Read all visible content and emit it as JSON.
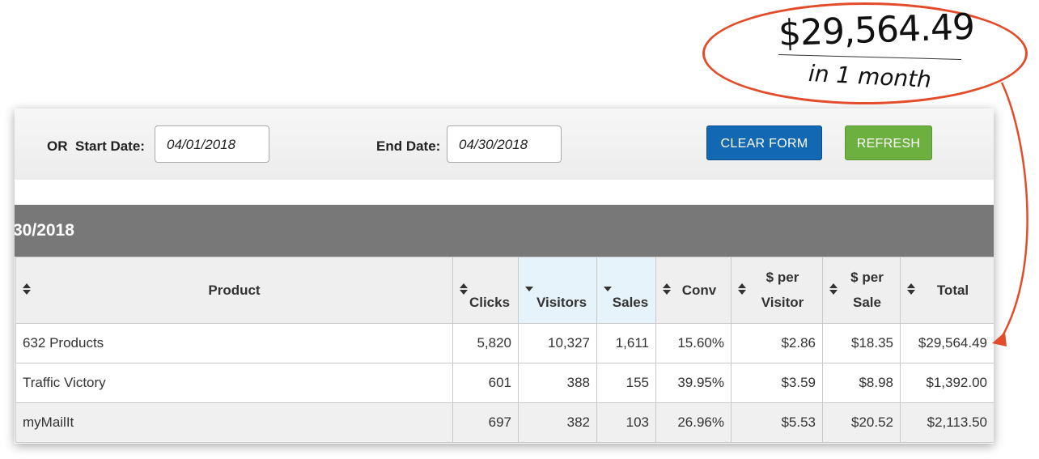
{
  "filters": {
    "or_label": "OR",
    "start_label": "Start Date:",
    "start_value": "04/01/2018",
    "end_label": "End Date:",
    "end_value": "04/30/2018",
    "clear_label": "CLEAR FORM",
    "refresh_label": "REFRESH"
  },
  "range_title": "30/2018",
  "table": {
    "headers": {
      "product": "Product",
      "clicks": "Clicks",
      "visitors": "Visitors",
      "sales": "Sales",
      "conv": "Conv",
      "per_visitor_1": "$ per",
      "per_visitor_2": "Visitor",
      "per_sale_1": "$ per",
      "per_sale_2": "Sale",
      "total": "Total"
    },
    "rows": [
      {
        "product": "632 Products",
        "clicks": "5,820",
        "visitors": "10,327",
        "sales": "1,611",
        "conv": "15.60%",
        "per_visitor": "$2.86",
        "per_sale": "$18.35",
        "total": "$29,564.49"
      },
      {
        "product": "Traffic Victory",
        "clicks": "601",
        "visitors": "388",
        "sales": "155",
        "conv": "39.95%",
        "per_visitor": "$3.59",
        "per_sale": "$8.98",
        "total": "$1,392.00"
      },
      {
        "product": "myMailIt",
        "clicks": "697",
        "visitors": "382",
        "sales": "103",
        "conv": "26.96%",
        "per_visitor": "$5.53",
        "per_sale": "$20.52",
        "total": "$2,113.50"
      }
    ]
  },
  "callout": {
    "amount": "$29,564.49",
    "subtitle": "in 1 month",
    "color": "#e34c2a"
  },
  "colors": {
    "clear_button": "#1268b3",
    "refresh_button": "#6cb040",
    "range_bar": "#787878",
    "active_header": "#e6f3fb"
  }
}
